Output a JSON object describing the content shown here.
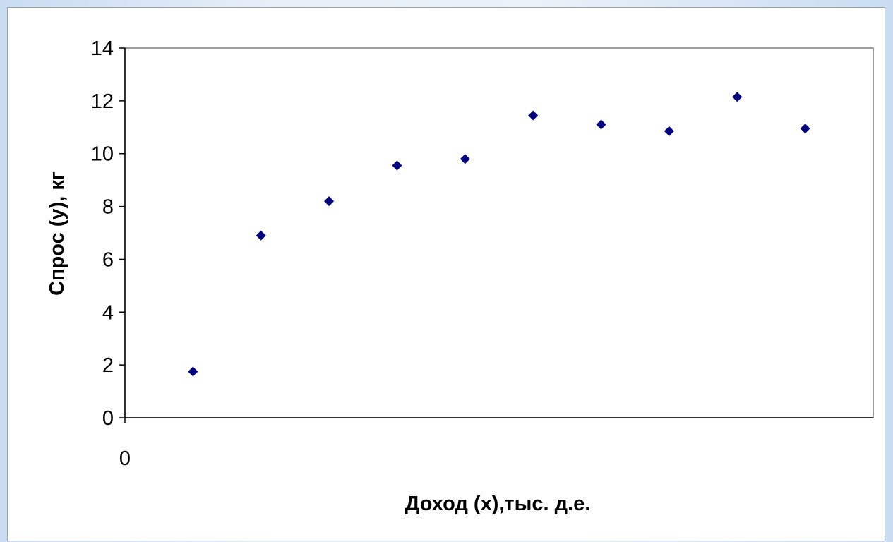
{
  "chart_data": {
    "type": "scatter",
    "title": "",
    "xlabel": "Доход (x),тыс. д.е.",
    "ylabel": "Спрос (y), кг",
    "x": [
      1,
      2,
      3,
      4,
      5,
      6,
      7,
      8,
      9,
      10
    ],
    "y": [
      1.75,
      6.9,
      8.2,
      9.55,
      9.8,
      11.45,
      11.1,
      10.85,
      12.15,
      10.95
    ],
    "x_tick_labels": [
      "0"
    ],
    "y_ticks": [
      0,
      2,
      4,
      6,
      8,
      10,
      12,
      14
    ],
    "y_tick_labels": [
      "0",
      "2",
      "4",
      "6",
      "8",
      "10",
      "12",
      "14"
    ],
    "xlim": [
      0,
      11
    ],
    "ylim": [
      0,
      14
    ],
    "grid": false,
    "legend": "none",
    "marker": "diamond",
    "marker_color": "#000080"
  }
}
